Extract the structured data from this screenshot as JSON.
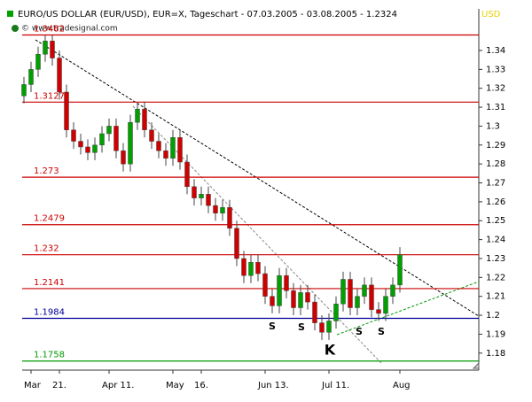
{
  "chart_data": {
    "type": "candlestick",
    "title": "EURO/US DOLLAR (EUR/USD), EUR=X, Tageschart - 07.03.2005 - 03.08.2005 - 1.2324",
    "watermark": "© www.tradesignal.com",
    "currency": "USD",
    "categories": [
      null,
      "Mar",
      null,
      null,
      null,
      "21.",
      null,
      null,
      null,
      null,
      null,
      null,
      "Apr 11.",
      null,
      null,
      null,
      null,
      null,
      null,
      null,
      null,
      "May",
      null,
      null,
      null,
      "16.",
      null,
      null,
      null,
      null,
      null,
      null,
      null,
      null,
      "Jun 13.",
      null,
      null,
      null,
      null,
      null,
      null,
      null,
      null,
      "Jul 11.",
      null,
      null,
      null,
      null,
      null,
      null,
      null,
      null,
      null,
      "Aug"
    ],
    "open": [
      1.316,
      1.322,
      1.33,
      1.338,
      1.345,
      1.336,
      1.318,
      1.298,
      1.292,
      1.289,
      1.286,
      1.29,
      1.296,
      1.3,
      1.287,
      1.28,
      1.302,
      1.309,
      1.298,
      1.292,
      1.287,
      1.283,
      1.294,
      1.281,
      1.268,
      1.262,
      1.264,
      1.258,
      1.254,
      1.257,
      1.246,
      1.23,
      1.221,
      1.228,
      1.222,
      1.21,
      1.205,
      1.221,
      1.213,
      1.204,
      1.212,
      1.207,
      1.196,
      1.191,
      1.197,
      1.206,
      1.219,
      1.204,
      1.21,
      1.216,
      1.203,
      1.201,
      1.21,
      1.216
    ],
    "high": [
      1.326,
      1.334,
      1.342,
      1.348,
      1.348,
      1.34,
      1.322,
      1.302,
      1.296,
      1.293,
      1.294,
      1.3,
      1.304,
      1.304,
      1.291,
      1.306,
      1.3127,
      1.313,
      1.302,
      1.296,
      1.291,
      1.298,
      1.298,
      1.285,
      1.272,
      1.268,
      1.268,
      1.262,
      1.261,
      1.261,
      1.25,
      1.234,
      1.232,
      1.232,
      1.226,
      1.214,
      1.225,
      1.225,
      1.217,
      1.216,
      1.216,
      1.211,
      1.2,
      1.201,
      1.21,
      1.223,
      1.223,
      1.214,
      1.22,
      1.22,
      1.207,
      1.214,
      1.22,
      1.236
    ],
    "low": [
      1.312,
      1.318,
      1.326,
      1.334,
      1.332,
      1.314,
      1.294,
      1.288,
      1.285,
      1.282,
      1.282,
      1.286,
      1.292,
      1.283,
      1.276,
      1.276,
      1.298,
      1.294,
      1.288,
      1.283,
      1.279,
      1.279,
      1.277,
      1.264,
      1.258,
      1.258,
      1.254,
      1.25,
      1.25,
      1.242,
      1.226,
      1.217,
      1.217,
      1.218,
      1.206,
      1.201,
      1.201,
      1.209,
      1.2,
      1.2,
      1.203,
      1.192,
      1.187,
      1.187,
      1.193,
      1.202,
      1.2,
      1.2,
      1.206,
      1.199,
      1.197,
      1.197,
      1.206,
      1.212
    ],
    "close": [
      1.322,
      1.33,
      1.338,
      1.345,
      1.336,
      1.318,
      1.298,
      1.292,
      1.289,
      1.286,
      1.29,
      1.296,
      1.3,
      1.287,
      1.28,
      1.302,
      1.309,
      1.298,
      1.292,
      1.287,
      1.283,
      1.294,
      1.281,
      1.268,
      1.262,
      1.264,
      1.258,
      1.254,
      1.257,
      1.246,
      1.23,
      1.221,
      1.228,
      1.222,
      1.21,
      1.205,
      1.221,
      1.213,
      1.204,
      1.212,
      1.207,
      1.196,
      1.191,
      1.197,
      1.206,
      1.219,
      1.204,
      1.21,
      1.216,
      1.203,
      1.201,
      1.21,
      1.216,
      1.232
    ],
    "up_color": "#00a000",
    "down_color": "#d00000",
    "ylim": [
      1.171,
      1.362
    ],
    "yticks": [
      1.18,
      1.19,
      1.2,
      1.21,
      1.22,
      1.23,
      1.24,
      1.25,
      1.26,
      1.27,
      1.28,
      1.29,
      1.3,
      1.31,
      1.32,
      1.33,
      1.34
    ],
    "levels": [
      {
        "value": 1.3482,
        "color": "#cc0000"
      },
      {
        "value": 1.3127,
        "color": "#cc0000"
      },
      {
        "value": 1.273,
        "color": "#cc0000"
      },
      {
        "value": 1.2479,
        "color": "#cc0000"
      },
      {
        "value": 1.232,
        "color": "#cc0000"
      },
      {
        "value": 1.2141,
        "color": "#cc0000"
      },
      {
        "value": 1.1984,
        "color": "#000099"
      },
      {
        "value": 1.1758,
        "color": "#009900"
      }
    ],
    "annotations": [
      "S",
      "S",
      "S",
      "S",
      "K"
    ]
  }
}
